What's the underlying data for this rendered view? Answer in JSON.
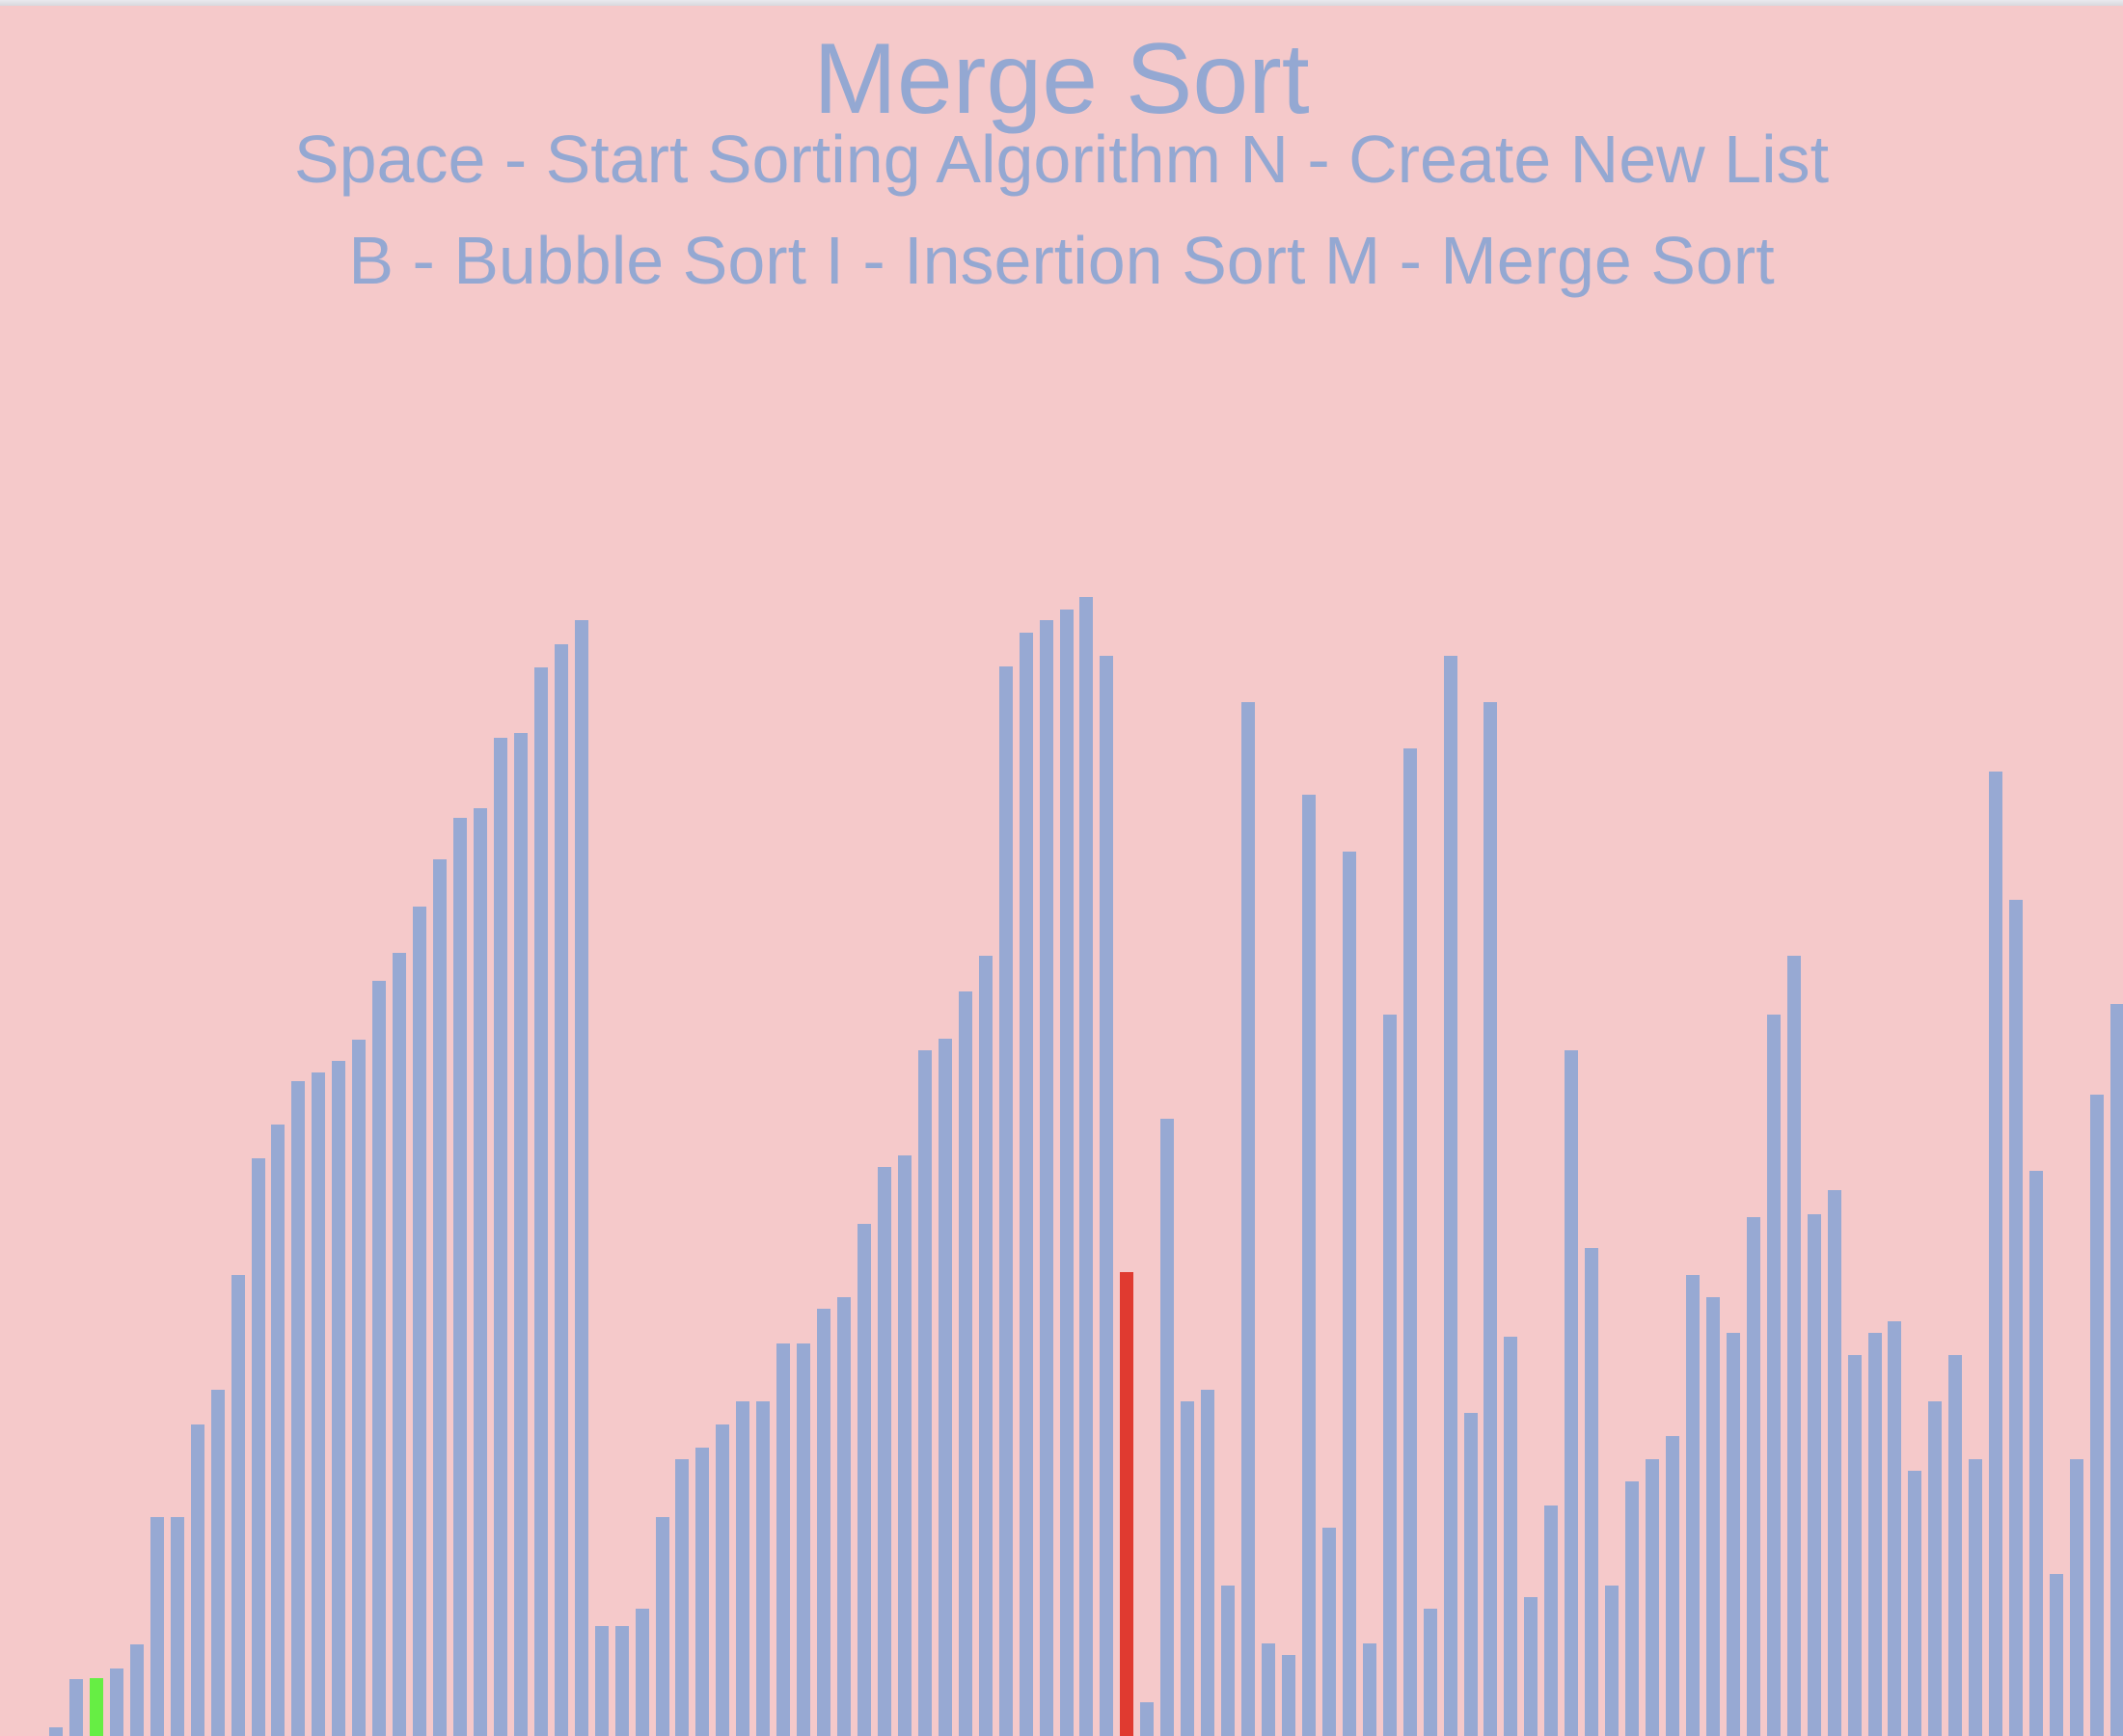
{
  "app": {
    "title": "Merge Sort",
    "controls_line_1": "Space - Start Sorting Algorithm N - Create New List",
    "controls_line_2": "B - Bubble Sort I - Insertion Sort M - Merge Sort"
  },
  "colors": {
    "background": "#f5c9ca",
    "text": "#94a8d2",
    "bar": "#97a9d3",
    "compare_left": "#66ee44",
    "compare_right": "#e03a30"
  },
  "list": {
    "max_value": 1000,
    "left_compare_index": 2,
    "right_compare_index": 53,
    "values": [
      8,
      50,
      51,
      60,
      81,
      194,
      194,
      276,
      306,
      408,
      511,
      541,
      579,
      587,
      597,
      616,
      668,
      693,
      734,
      776,
      812,
      821,
      883,
      887,
      945,
      966,
      987,
      97,
      97,
      113,
      194,
      245,
      255,
      276,
      296,
      296,
      347,
      347,
      378,
      388,
      453,
      503,
      514,
      607,
      617,
      659,
      690,
      946,
      976,
      987,
      997,
      1008,
      956,
      410,
      30,
      546,
      296,
      306,
      133,
      915,
      82,
      72,
      833,
      184,
      782,
      82,
      638,
      874,
      113,
      956,
      286,
      915,
      353,
      123,
      204,
      607,
      432,
      133,
      225,
      245,
      265,
      408,
      388,
      357,
      459,
      638,
      690,
      462,
      483,
      337,
      357,
      367,
      235,
      296,
      337,
      245,
      853,
      740,
      500,
      143,
      245,
      567,
      648
    ]
  }
}
